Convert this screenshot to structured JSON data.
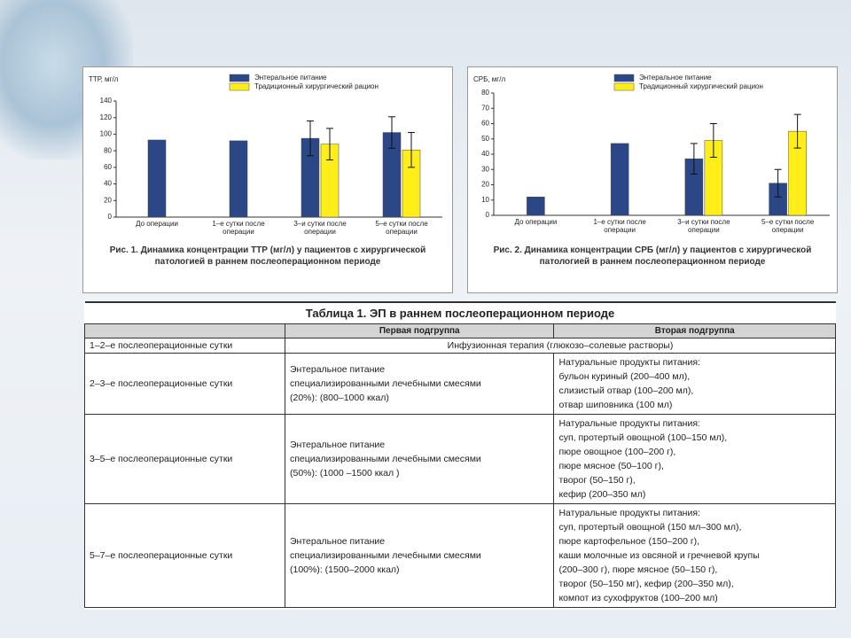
{
  "chart_data": [
    {
      "type": "bar",
      "y_label": "ТТР, мг/л",
      "categories": [
        "До операции",
        "1–е сутки после операции",
        "3–и сутки после операции",
        "5–е сутки после операции"
      ],
      "series": [
        {
          "name": "Энтеральное питание",
          "color": "#2b4785",
          "values": [
            93,
            92,
            95,
            102
          ],
          "errors": [
            null,
            null,
            21,
            19
          ]
        },
        {
          "name": "Традиционный хирургический рацион",
          "color": "#ffee1a",
          "values": [
            null,
            null,
            88,
            81
          ],
          "errors": [
            null,
            null,
            19,
            21
          ]
        }
      ],
      "ylim": [
        0,
        140
      ],
      "yticks": [
        0,
        20,
        40,
        60,
        80,
        100,
        120,
        140
      ],
      "caption": "Рис. 1. Динамика концентрации ТТР (мг/л) у пациентов с хирургической патологией в раннем послеоперационном периоде"
    },
    {
      "type": "bar",
      "y_label": "СРБ, мг/л",
      "categories": [
        "До операции",
        "1–е сутки после операции",
        "3–и сутки после операции",
        "5–е сутки после операции"
      ],
      "series": [
        {
          "name": "Энтеральное питание",
          "color": "#2b4785",
          "values": [
            12,
            47,
            37,
            21
          ],
          "errors": [
            null,
            null,
            10,
            9
          ]
        },
        {
          "name": "Традиционный хирургический рацион",
          "color": "#ffee1a",
          "values": [
            null,
            null,
            49,
            55
          ],
          "errors": [
            null,
            null,
            11,
            11
          ]
        }
      ],
      "ylim": [
        0,
        80
      ],
      "yticks": [
        0,
        10,
        20,
        30,
        40,
        50,
        60,
        70,
        80
      ],
      "caption": "Рис. 2. Динамика концентрации СРБ (мг/л) у пациентов с хирургической патологией в раннем послеоперационном периоде"
    }
  ],
  "table": {
    "title": "Таблица 1. ЭП в раннем послеоперационном периоде",
    "header": [
      "Первая подгруппа",
      "Вторая подгруппа"
    ],
    "rows": [
      {
        "period": "1–2–е послеоперационные сутки",
        "common": "Инфузионная терапия (глюкозо–солевые растворы)"
      },
      {
        "period": "2–3–е послеоперационные сутки",
        "first": [
          "Энтеральное питание",
          "специализированными лечебными смесями",
          "(20%): (800–1000 ккал)"
        ],
        "second": [
          "Натуральные продукты питания:",
          "бульон куриный (200–400 мл),",
          "слизистый отвар (100–200 мл),",
          "отвар шиповника (100 мл)"
        ]
      },
      {
        "period": "3–5–е послеоперационные сутки",
        "first": [
          "Энтеральное питание",
          "специализированными лечебными смесями",
          "(50%): (1000 –1500 ккал )"
        ],
        "second": [
          "Натуральные продукты питания:",
          "суп, протертый овощной (100–150 мл),",
          "пюре овощное (100–200 г),",
          "пюре мясное (50–100 г),",
          "творог (50–150 г),",
          "кефир (200–350 мл)"
        ]
      },
      {
        "period": "5–7–е послеоперационные сутки",
        "first": [
          "Энтеральное питание",
          "специализированными лечебными смесями",
          "(100%): (1500–2000 ккал)"
        ],
        "second": [
          "Натуральные продукты питания:",
          "суп, протертый овощной (150 мл–300 мл),",
          "пюре картофельное (150–200 г),",
          "каши молочные из овсяной и гречневой крупы",
          "(200–300 г), пюре мясное (50–150 г),",
          "творог (50–150 мг), кефир (200–350 мл),",
          "компот из сухофруктов (100–200 мл)"
        ]
      }
    ]
  }
}
